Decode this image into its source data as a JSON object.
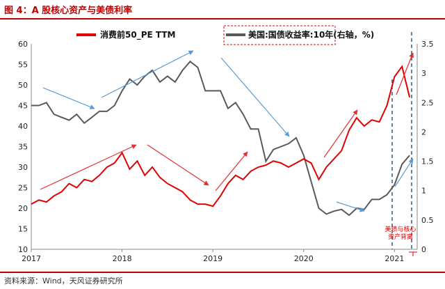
{
  "figure": {
    "title": "图 4：A 股核心资产与美债利率",
    "source": "资料来源：Wind，天风证券研究所"
  },
  "chart_data": {
    "type": "line",
    "x_ticks": [
      "2017",
      "2018",
      "2019",
      "2020",
      "2021"
    ],
    "ylim_left": [
      10,
      60
    ],
    "y_ticks_left": [
      "10",
      "15",
      "20",
      "25",
      "30",
      "35",
      "40",
      "45",
      "50",
      "55",
      "60"
    ],
    "ylim_right": [
      0,
      3.5
    ],
    "y_ticks_right": [
      "0",
      "0.5",
      "1",
      "1.5",
      "2",
      "2.5",
      "3",
      "3.5"
    ],
    "colors": {
      "consumer": "#e00000",
      "treasury": "#595959",
      "arrow": "#5b9bd5",
      "arrow_red": "#e03030",
      "dashed": "#1f4e79"
    },
    "series": [
      {
        "name": "消费前50_PE TTM",
        "axis": "left",
        "points": [
          [
            "2017-01",
            21.0
          ],
          [
            "2017-02",
            22.0
          ],
          [
            "2017-03",
            21.5
          ],
          [
            "2017-04",
            23.0
          ],
          [
            "2017-05",
            24.0
          ],
          [
            "2017-06",
            26.0
          ],
          [
            "2017-07",
            25.0
          ],
          [
            "2017-08",
            27.0
          ],
          [
            "2017-09",
            26.5
          ],
          [
            "2017-10",
            28.0
          ],
          [
            "2017-11",
            30.0
          ],
          [
            "2017-12",
            31.0
          ],
          [
            "2018-01",
            33.5
          ],
          [
            "2018-02",
            29.5
          ],
          [
            "2018-03",
            31.5
          ],
          [
            "2018-04",
            28.0
          ],
          [
            "2018-05",
            30.0
          ],
          [
            "2018-06",
            27.5
          ],
          [
            "2018-07",
            26.0
          ],
          [
            "2018-08",
            25.0
          ],
          [
            "2018-09",
            24.0
          ],
          [
            "2018-10",
            22.0
          ],
          [
            "2018-11",
            21.0
          ],
          [
            "2018-12",
            21.0
          ],
          [
            "2019-01",
            20.5
          ],
          [
            "2019-02",
            23.0
          ],
          [
            "2019-03",
            26.0
          ],
          [
            "2019-04",
            28.0
          ],
          [
            "2019-05",
            27.0
          ],
          [
            "2019-06",
            29.0
          ],
          [
            "2019-07",
            30.0
          ],
          [
            "2019-08",
            30.5
          ],
          [
            "2019-09",
            31.5
          ],
          [
            "2019-10",
            31.0
          ],
          [
            "2019-11",
            30.0
          ],
          [
            "2019-12",
            31.0
          ],
          [
            "2020-01",
            32.0
          ],
          [
            "2020-02",
            31.0
          ],
          [
            "2020-03",
            27.0
          ],
          [
            "2020-04",
            30.0
          ],
          [
            "2020-05",
            32.0
          ],
          [
            "2020-06",
            34.0
          ],
          [
            "2020-07",
            39.0
          ],
          [
            "2020-08",
            42.0
          ],
          [
            "2020-09",
            40.0
          ],
          [
            "2020-10",
            41.5
          ],
          [
            "2020-11",
            41.0
          ],
          [
            "2020-12",
            45.0
          ],
          [
            "2021-01",
            52.0
          ],
          [
            "2021-02",
            54.5
          ],
          [
            "2021-03",
            47.0
          ]
        ]
      },
      {
        "name": "美国:国债收益率:10年(右轴，%)",
        "axis": "right",
        "points": [
          [
            "2017-01",
            2.45
          ],
          [
            "2017-02",
            2.45
          ],
          [
            "2017-03",
            2.5
          ],
          [
            "2017-04",
            2.3
          ],
          [
            "2017-05",
            2.25
          ],
          [
            "2017-06",
            2.2
          ],
          [
            "2017-07",
            2.3
          ],
          [
            "2017-08",
            2.15
          ],
          [
            "2017-09",
            2.25
          ],
          [
            "2017-10",
            2.35
          ],
          [
            "2017-11",
            2.35
          ],
          [
            "2017-12",
            2.45
          ],
          [
            "2018-01",
            2.7
          ],
          [
            "2018-02",
            2.9
          ],
          [
            "2018-03",
            2.8
          ],
          [
            "2018-04",
            2.95
          ],
          [
            "2018-05",
            3.05
          ],
          [
            "2018-06",
            2.85
          ],
          [
            "2018-07",
            2.95
          ],
          [
            "2018-08",
            2.85
          ],
          [
            "2018-09",
            3.05
          ],
          [
            "2018-10",
            3.2
          ],
          [
            "2018-11",
            3.1
          ],
          [
            "2018-12",
            2.7
          ],
          [
            "2019-01",
            2.7
          ],
          [
            "2019-02",
            2.7
          ],
          [
            "2019-03",
            2.4
          ],
          [
            "2019-04",
            2.5
          ],
          [
            "2019-05",
            2.3
          ],
          [
            "2019-06",
            2.05
          ],
          [
            "2019-07",
            2.05
          ],
          [
            "2019-08",
            1.5
          ],
          [
            "2019-09",
            1.7
          ],
          [
            "2019-10",
            1.75
          ],
          [
            "2019-11",
            1.8
          ],
          [
            "2019-12",
            1.9
          ],
          [
            "2020-01",
            1.6
          ],
          [
            "2020-02",
            1.15
          ],
          [
            "2020-03",
            0.7
          ],
          [
            "2020-04",
            0.6
          ],
          [
            "2020-05",
            0.65
          ],
          [
            "2020-06",
            0.68
          ],
          [
            "2020-07",
            0.58
          ],
          [
            "2020-08",
            0.7
          ],
          [
            "2020-09",
            0.68
          ],
          [
            "2020-10",
            0.85
          ],
          [
            "2020-11",
            0.85
          ],
          [
            "2020-12",
            0.93
          ],
          [
            "2021-01",
            1.1
          ],
          [
            "2021-02",
            1.45
          ],
          [
            "2021-03",
            1.6
          ]
        ]
      }
    ],
    "annotation": {
      "text_line1": "美债与核心",
      "text_line2": "资产背离"
    }
  }
}
